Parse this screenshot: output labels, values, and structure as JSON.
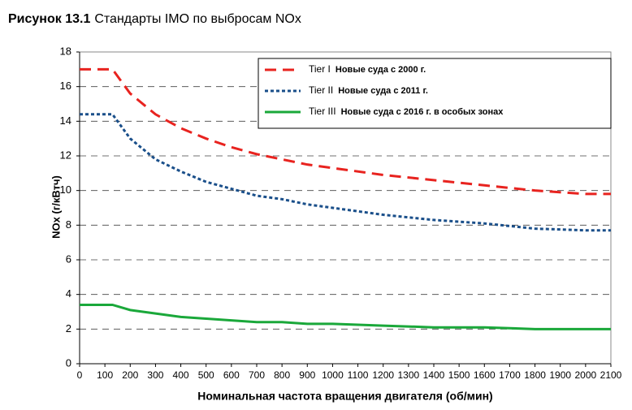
{
  "chart_data": {
    "type": "line",
    "figure_label": "Рисунок 13.1",
    "title": "Стандарты IMO по выбросам NOx",
    "x_label": "Номинальная частота вращения двигателя (об/мин)",
    "y_label": "NOx (г/кВтч)",
    "x": [
      0,
      130,
      200,
      300,
      400,
      500,
      600,
      700,
      800,
      900,
      1000,
      1200,
      1400,
      1600,
      1800,
      2000,
      2100
    ],
    "series": [
      {
        "name": "Tier I",
        "note": "Новые суда с 2000 г.",
        "color": "#e8231f",
        "dash": "dashed",
        "values": [
          17.0,
          17.0,
          15.6,
          14.4,
          13.6,
          13.0,
          12.5,
          12.1,
          11.8,
          11.5,
          11.3,
          10.9,
          10.6,
          10.3,
          10.0,
          9.8,
          9.8
        ]
      },
      {
        "name": "Tier II",
        "note": "Новые суда с 2011 г.",
        "color": "#1a4f8a",
        "dash": "dotted",
        "values": [
          14.4,
          14.4,
          13.0,
          11.8,
          11.1,
          10.5,
          10.1,
          9.7,
          9.5,
          9.2,
          9.0,
          8.6,
          8.3,
          8.1,
          7.8,
          7.7,
          7.7
        ]
      },
      {
        "name": "Tier III",
        "note": "Новые суда с 2016 г. в особых зонах",
        "color": "#1aa83a",
        "dash": "solid",
        "values": [
          3.4,
          3.4,
          3.1,
          2.9,
          2.7,
          2.6,
          2.5,
          2.4,
          2.4,
          2.3,
          2.3,
          2.2,
          2.1,
          2.1,
          2.0,
          2.0,
          2.0
        ]
      }
    ],
    "xlim": [
      0,
      2100
    ],
    "xticks": [
      0,
      100,
      200,
      300,
      400,
      500,
      600,
      700,
      800,
      900,
      1000,
      1100,
      1200,
      1300,
      1400,
      1500,
      1600,
      1700,
      1800,
      1900,
      2000,
      2100
    ],
    "ylim": [
      0,
      18
    ],
    "yticks": [
      0,
      2,
      4,
      6,
      8,
      10,
      12,
      14,
      16,
      18
    ],
    "grid": true,
    "legend": "top-right"
  }
}
